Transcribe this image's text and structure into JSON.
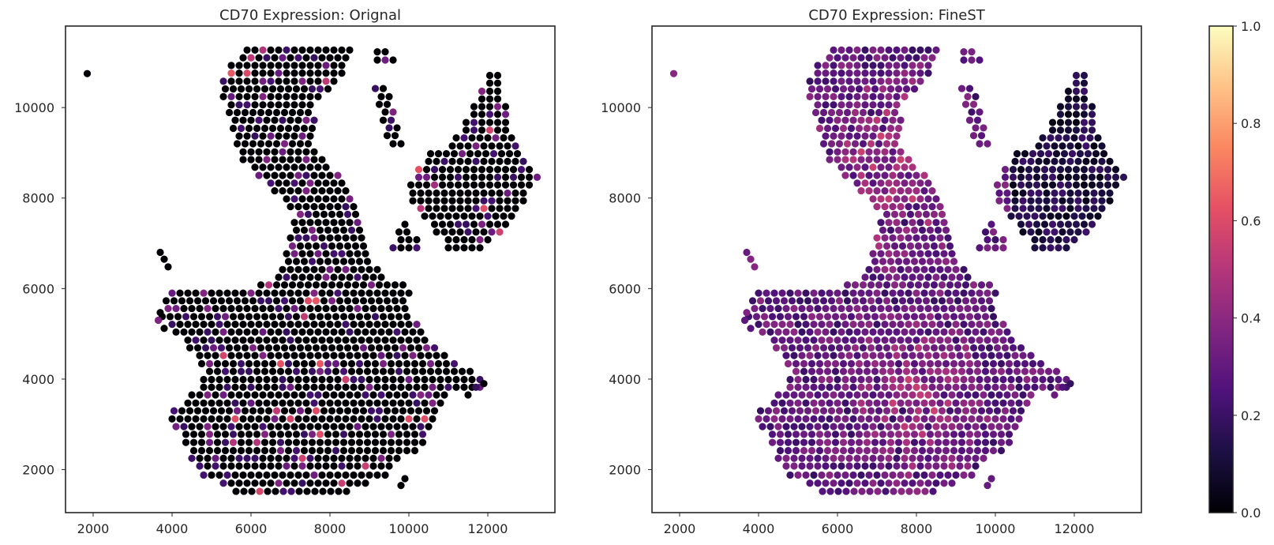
{
  "chart_data": [
    {
      "type": "scatter",
      "title": "CD70 Expression: Orignal",
      "xlim": [
        1300,
        13700
      ],
      "ylim": [
        11800,
        1050
      ],
      "y_inverted": true,
      "xticks": [
        2000,
        4000,
        6000,
        8000,
        10000,
        12000
      ],
      "xtick_labels": [
        "2000",
        "4000",
        "6000",
        "8000",
        "10000",
        "12000"
      ],
      "yticks": [
        2000,
        4000,
        6000,
        8000,
        10000
      ],
      "ytick_labels": [
        "2000",
        "4000",
        "6000",
        "8000",
        "10000"
      ],
      "grid": false,
      "colormap": "magma",
      "clim": [
        0,
        1
      ],
      "spot_spacing": 200,
      "tissue_rows": [
        [
          1520,
          5620,
          8600
        ],
        [
          1700,
          5200,
          9000
        ],
        [
          1880,
          4800,
          9400
        ],
        [
          2080,
          4600,
          9600
        ],
        [
          2250,
          4500,
          9800
        ],
        [
          2420,
          4450,
          10200
        ],
        [
          2600,
          4350,
          10400
        ],
        [
          2780,
          4250,
          10500
        ],
        [
          2950,
          4100,
          10600
        ],
        [
          3120,
          3900,
          10700
        ],
        [
          3300,
          4050,
          10800
        ],
        [
          3470,
          4300,
          10900
        ],
        [
          3650,
          4500,
          11000
        ],
        [
          3820,
          4700,
          11850
        ],
        [
          3990,
          4800,
          11800
        ],
        [
          4170,
          4850,
          11600
        ],
        [
          4340,
          4750,
          11200
        ],
        [
          4520,
          4600,
          11000
        ],
        [
          4690,
          4450,
          10700
        ],
        [
          4860,
          4300,
          10500
        ],
        [
          5040,
          4100,
          10300
        ],
        [
          5210,
          3900,
          10200
        ],
        [
          5380,
          3750,
          10100
        ],
        [
          5560,
          3800,
          10050
        ],
        [
          5730,
          3850,
          10000
        ],
        [
          5900,
          3900,
          10000
        ],
        [
          6080,
          6250,
          9900
        ],
        [
          6250,
          6600,
          9400
        ],
        [
          6420,
          6800,
          9200
        ],
        [
          6600,
          6850,
          9000
        ],
        [
          6770,
          6900,
          8900
        ],
        [
          6940,
          6950,
          8900
        ],
        [
          7120,
          7000,
          8900
        ],
        [
          7290,
          7050,
          8800
        ],
        [
          7460,
          7100,
          8700
        ],
        [
          7640,
          7150,
          8650
        ],
        [
          7810,
          7000,
          8600
        ],
        [
          7980,
          6800,
          8500
        ],
        [
          8160,
          6600,
          8400
        ],
        [
          8330,
          6400,
          8300
        ],
        [
          8500,
          6200,
          8200
        ],
        [
          8680,
          6000,
          8000
        ],
        [
          8850,
          5800,
          7800
        ],
        [
          9020,
          5700,
          7700
        ],
        [
          9200,
          5650,
          7600
        ],
        [
          9370,
          5600,
          7600
        ],
        [
          9540,
          5550,
          7600
        ],
        [
          9720,
          5500,
          7600
        ],
        [
          9890,
          5450,
          7600
        ],
        [
          10060,
          5400,
          7600
        ],
        [
          10240,
          5300,
          7800
        ],
        [
          10410,
          5250,
          8000
        ],
        [
          10580,
          5300,
          8200
        ],
        [
          10760,
          5400,
          8300
        ],
        [
          10930,
          5500,
          8400
        ],
        [
          11100,
          5700,
          8500
        ],
        [
          11270,
          5900,
          8600
        ]
      ],
      "tissue_blocks": [
        [
          6900,
          9600,
          10300
        ],
        [
          7080,
          9700,
          10200
        ],
        [
          7250,
          9750,
          10100
        ],
        [
          7420,
          9800,
          10000
        ],
        [
          6900,
          11000,
          11900
        ],
        [
          7080,
          10900,
          12100
        ],
        [
          7250,
          10700,
          12300
        ],
        [
          7420,
          10550,
          12500
        ],
        [
          7600,
          10400,
          12650
        ],
        [
          7770,
          10200,
          12800
        ],
        [
          7940,
          10100,
          12950
        ],
        [
          8110,
          10000,
          13050
        ],
        [
          8290,
          10050,
          13150
        ],
        [
          8460,
          10150,
          13250
        ],
        [
          8630,
          10250,
          13200
        ],
        [
          8810,
          10400,
          13050
        ],
        [
          8980,
          10550,
          12900
        ],
        [
          9150,
          11000,
          12750
        ],
        [
          9330,
          11200,
          12650
        ],
        [
          9500,
          11350,
          12600
        ],
        [
          9670,
          11450,
          12550
        ],
        [
          9850,
          11550,
          12500
        ],
        [
          10020,
          11650,
          12450
        ],
        [
          10190,
          11750,
          12400
        ],
        [
          10360,
          11850,
          12350
        ],
        [
          10540,
          11950,
          12300
        ],
        [
          10710,
          12050,
          12250
        ],
        [
          9200,
          9500,
          9800
        ],
        [
          9380,
          9450,
          9750
        ],
        [
          9550,
          9400,
          9700
        ],
        [
          9720,
          9350,
          9650
        ],
        [
          9900,
          9300,
          9600
        ],
        [
          10070,
          9250,
          9550
        ],
        [
          10240,
          9200,
          9500
        ],
        [
          10420,
          9150,
          9450
        ],
        [
          11050,
          9100,
          9600
        ],
        [
          11230,
          9200,
          9500
        ]
      ],
      "isolated_spots": [
        [
          1850,
          10750
        ],
        [
          3700,
          6800
        ],
        [
          3800,
          6650
        ],
        [
          3900,
          6480
        ],
        [
          3650,
          5300
        ],
        [
          3700,
          5470
        ],
        [
          3800,
          5120
        ],
        [
          9800,
          1650
        ],
        [
          9900,
          1800
        ],
        [
          11500,
          3650
        ],
        [
          11700,
          3820
        ],
        [
          11900,
          3900
        ]
      ],
      "mean_expression": 0.04
    },
    {
      "type": "scatter",
      "title": "CD70 Expression: FineST",
      "xlim": [
        1300,
        13700
      ],
      "ylim": [
        11800,
        1050
      ],
      "y_inverted": true,
      "xticks": [
        2000,
        4000,
        6000,
        8000,
        10000,
        12000
      ],
      "xtick_labels": [
        "2000",
        "4000",
        "6000",
        "8000",
        "10000",
        "12000"
      ],
      "yticks": [
        2000,
        4000,
        6000,
        8000,
        10000
      ],
      "ytick_labels": [
        "2000",
        "4000",
        "6000",
        "8000",
        "10000"
      ],
      "grid": false,
      "colormap": "magma",
      "clim": [
        0,
        1
      ],
      "mean_expression": 0.3
    }
  ],
  "colorbar": {
    "colormap": "magma",
    "range": [
      0,
      1
    ],
    "ticks": [
      0.0,
      0.2,
      0.4,
      0.6,
      0.8,
      1.0
    ],
    "tick_labels": [
      "0.0",
      "0.2",
      "0.4",
      "0.6",
      "0.8",
      "1.0"
    ]
  },
  "colors": {
    "axes": "#262626",
    "background": "#ffffff",
    "magma_stops": [
      "#000004",
      "#1c1044",
      "#4f127b",
      "#812581",
      "#b5367a",
      "#e55064",
      "#fb8761",
      "#fec287",
      "#fcfdbf"
    ]
  }
}
